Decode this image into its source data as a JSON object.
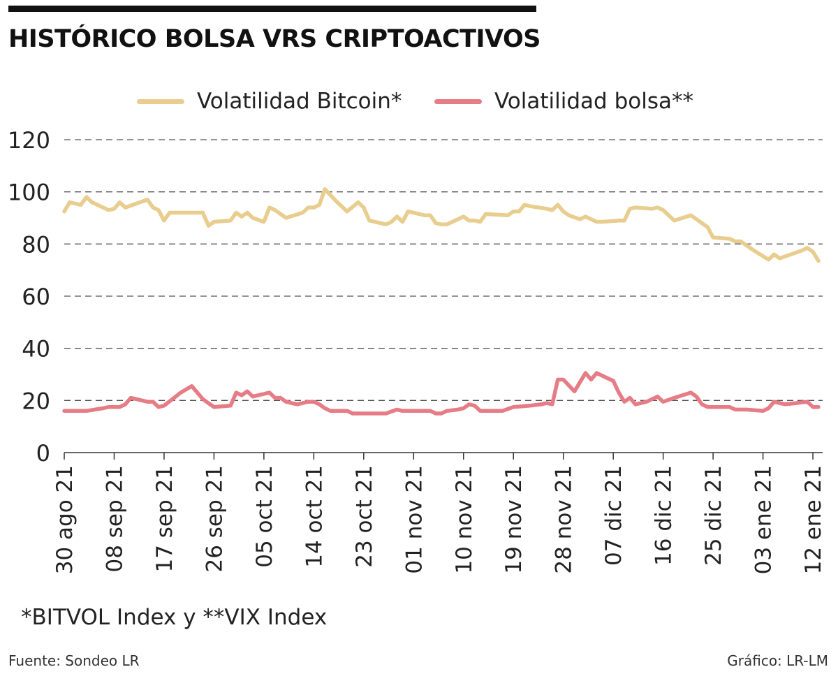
{
  "header": {
    "title": "HISTÓRICO BOLSA VRS CRIPTOACTIVOS"
  },
  "legend": [
    {
      "label": "Volatilidad Bitcoin*",
      "color": "#E8CD8E"
    },
    {
      "label": "Volatilidad bolsa**",
      "color": "#E67C85"
    }
  ],
  "footnote": "*BITVOL Index y **VIX Index",
  "source": "Fuente: Sondeo LR",
  "credit": "Gráfico: LR-LM",
  "chart_data": {
    "type": "line",
    "x_ticks": [
      "30 ago 21",
      "08 sep 21",
      "17 sep 21",
      "26 sep 21",
      "05 oct 21",
      "14 oct 21",
      "23 oct 21",
      "01 nov 21",
      "10 nov 21",
      "19 nov 21",
      "28 nov 21",
      "07 dic 21",
      "16 dic 21",
      "25 dic 21",
      "03 ene 21",
      "12 ene 21"
    ],
    "x_domain": [
      "2021-08-30",
      "2022-01-13"
    ],
    "ylim": [
      0,
      120
    ],
    "y_ticks": [
      0,
      20,
      40,
      60,
      80,
      100,
      120
    ],
    "grid": true,
    "legend_position": "top",
    "series": [
      {
        "name": "Volatilidad Bitcoin*",
        "color": "#E8CD8E",
        "points": [
          [
            "2021-08-30",
            92.5
          ],
          [
            "2021-08-31",
            96
          ],
          [
            "2021-09-01",
            95.5
          ],
          [
            "2021-09-02",
            95
          ],
          [
            "2021-09-03",
            98
          ],
          [
            "2021-09-04",
            96
          ],
          [
            "2021-09-07",
            93
          ],
          [
            "2021-09-08",
            93.5
          ],
          [
            "2021-09-09",
            96
          ],
          [
            "2021-09-10",
            94
          ],
          [
            "2021-09-14",
            97
          ],
          [
            "2021-09-15",
            94
          ],
          [
            "2021-09-16",
            93
          ],
          [
            "2021-09-17",
            89
          ],
          [
            "2021-09-18",
            92
          ],
          [
            "2021-09-24",
            92
          ],
          [
            "2021-09-25",
            87
          ],
          [
            "2021-09-26",
            88.5
          ],
          [
            "2021-09-29",
            89
          ],
          [
            "2021-09-30",
            92
          ],
          [
            "2021-10-01",
            90.5
          ],
          [
            "2021-10-02",
            92
          ],
          [
            "2021-10-03",
            90
          ],
          [
            "2021-10-05",
            88.5
          ],
          [
            "2021-10-06",
            94
          ],
          [
            "2021-10-07",
            93
          ],
          [
            "2021-10-09",
            90
          ],
          [
            "2021-10-12",
            92
          ],
          [
            "2021-10-13",
            94
          ],
          [
            "2021-10-14",
            94
          ],
          [
            "2021-10-15",
            95
          ],
          [
            "2021-10-16",
            101
          ],
          [
            "2021-10-18",
            96.5
          ],
          [
            "2021-10-20",
            92.5
          ],
          [
            "2021-10-22",
            96
          ],
          [
            "2021-10-23",
            94
          ],
          [
            "2021-10-24",
            89
          ],
          [
            "2021-10-27",
            87.5
          ],
          [
            "2021-10-28",
            88.5
          ],
          [
            "2021-10-29",
            90.5
          ],
          [
            "2021-10-30",
            88.5
          ],
          [
            "2021-10-31",
            92.5
          ],
          [
            "2021-11-03",
            91
          ],
          [
            "2021-11-04",
            91
          ],
          [
            "2021-11-05",
            88
          ],
          [
            "2021-11-06",
            87.5
          ],
          [
            "2021-11-07",
            87.5
          ],
          [
            "2021-11-10",
            90.5
          ],
          [
            "2021-11-11",
            89
          ],
          [
            "2021-11-12",
            89
          ],
          [
            "2021-11-13",
            88.5
          ],
          [
            "2021-11-14",
            91.5
          ],
          [
            "2021-11-18",
            91
          ],
          [
            "2021-11-19",
            92.5
          ],
          [
            "2021-11-20",
            92.5
          ],
          [
            "2021-11-21",
            95
          ],
          [
            "2021-11-22",
            94.5
          ],
          [
            "2021-11-25",
            93.5
          ],
          [
            "2021-11-26",
            93
          ],
          [
            "2021-11-27",
            95
          ],
          [
            "2021-11-28",
            92.5
          ],
          [
            "2021-11-29",
            91
          ],
          [
            "2021-12-01",
            89.5
          ],
          [
            "2021-12-02",
            90.5
          ],
          [
            "2021-12-04",
            88.5
          ],
          [
            "2021-12-05",
            88.5
          ],
          [
            "2021-12-08",
            89
          ],
          [
            "2021-12-09",
            89
          ],
          [
            "2021-12-10",
            93.5
          ],
          [
            "2021-12-11",
            94
          ],
          [
            "2021-12-14",
            93.5
          ],
          [
            "2021-12-15",
            94
          ],
          [
            "2021-12-16",
            93
          ],
          [
            "2021-12-18",
            89
          ],
          [
            "2021-12-21",
            91
          ],
          [
            "2021-12-23",
            88
          ],
          [
            "2021-12-24",
            86.5
          ],
          [
            "2021-12-25",
            82.5
          ],
          [
            "2021-12-28",
            82
          ],
          [
            "2021-12-29",
            81
          ],
          [
            "2021-12-30",
            81
          ],
          [
            "2022-01-01",
            78
          ],
          [
            "2022-01-04",
            74
          ],
          [
            "2022-01-05",
            76
          ],
          [
            "2022-01-06",
            74.5
          ],
          [
            "2022-01-08",
            76
          ],
          [
            "2022-01-10",
            77.5
          ],
          [
            "2022-01-11",
            78.5
          ],
          [
            "2022-01-12",
            77
          ],
          [
            "2022-01-13",
            73.5
          ]
        ]
      },
      {
        "name": "Volatilidad bolsa**",
        "color": "#E67C85",
        "points": [
          [
            "2021-08-30",
            16
          ],
          [
            "2021-09-03",
            16
          ],
          [
            "2021-09-06",
            17
          ],
          [
            "2021-09-07",
            17.5
          ],
          [
            "2021-09-09",
            17.5
          ],
          [
            "2021-09-10",
            18.5
          ],
          [
            "2021-09-11",
            21
          ],
          [
            "2021-09-13",
            20
          ],
          [
            "2021-09-14",
            19.5
          ],
          [
            "2021-09-15",
            19.5
          ],
          [
            "2021-09-16",
            17.5
          ],
          [
            "2021-09-17",
            18
          ],
          [
            "2021-09-20",
            23
          ],
          [
            "2021-09-22",
            25.5
          ],
          [
            "2021-09-24",
            20.5
          ],
          [
            "2021-09-26",
            17.5
          ],
          [
            "2021-09-29",
            18
          ],
          [
            "2021-09-30",
            23
          ],
          [
            "2021-10-01",
            22
          ],
          [
            "2021-10-02",
            23.5
          ],
          [
            "2021-10-03",
            21.5
          ],
          [
            "2021-10-05",
            22.5
          ],
          [
            "2021-10-06",
            23
          ],
          [
            "2021-10-07",
            21
          ],
          [
            "2021-10-08",
            21
          ],
          [
            "2021-10-09",
            19.5
          ],
          [
            "2021-10-11",
            18.5
          ],
          [
            "2021-10-13",
            19.5
          ],
          [
            "2021-10-14",
            19.5
          ],
          [
            "2021-10-15",
            18.5
          ],
          [
            "2021-10-16",
            17
          ],
          [
            "2021-10-17",
            16
          ],
          [
            "2021-10-20",
            16
          ],
          [
            "2021-10-21",
            15
          ],
          [
            "2021-10-24",
            15
          ],
          [
            "2021-10-25",
            15
          ],
          [
            "2021-10-27",
            15
          ],
          [
            "2021-10-29",
            16.5
          ],
          [
            "2021-10-30",
            16
          ],
          [
            "2021-11-04",
            16
          ],
          [
            "2021-11-05",
            15
          ],
          [
            "2021-11-06",
            15
          ],
          [
            "2021-11-07",
            16
          ],
          [
            "2021-11-09",
            16.5
          ],
          [
            "2021-11-10",
            17
          ],
          [
            "2021-11-11",
            18.5
          ],
          [
            "2021-11-12",
            18
          ],
          [
            "2021-11-13",
            16
          ],
          [
            "2021-11-17",
            16
          ],
          [
            "2021-11-19",
            17.5
          ],
          [
            "2021-11-22",
            18
          ],
          [
            "2021-11-24",
            18.5
          ],
          [
            "2021-11-25",
            19
          ],
          [
            "2021-11-26",
            18.5
          ],
          [
            "2021-11-27",
            28
          ],
          [
            "2021-11-28",
            28
          ],
          [
            "2021-11-30",
            23.5
          ],
          [
            "2021-12-01",
            27
          ],
          [
            "2021-12-02",
            30.5
          ],
          [
            "2021-12-03",
            28
          ],
          [
            "2021-12-04",
            30.5
          ],
          [
            "2021-12-06",
            28.5
          ],
          [
            "2021-12-07",
            27.5
          ],
          [
            "2021-12-08",
            23
          ],
          [
            "2021-12-09",
            19.5
          ],
          [
            "2021-12-10",
            21
          ],
          [
            "2021-12-11",
            18.5
          ],
          [
            "2021-12-13",
            19.5
          ],
          [
            "2021-12-15",
            21.5
          ],
          [
            "2021-12-16",
            19.5
          ],
          [
            "2021-12-18",
            21
          ],
          [
            "2021-12-21",
            23
          ],
          [
            "2021-12-22",
            21.5
          ],
          [
            "2021-12-23",
            18.5
          ],
          [
            "2021-12-24",
            17.5
          ],
          [
            "2021-12-28",
            17.5
          ],
          [
            "2021-12-29",
            16.5
          ],
          [
            "2021-12-31",
            16.5
          ],
          [
            "2022-01-03",
            16
          ],
          [
            "2022-01-04",
            17
          ],
          [
            "2022-01-05",
            19.5
          ],
          [
            "2022-01-06",
            19
          ],
          [
            "2022-01-07",
            18.5
          ],
          [
            "2022-01-09",
            19
          ],
          [
            "2022-01-11",
            19.5
          ],
          [
            "2022-01-12",
            17.5
          ],
          [
            "2022-01-13",
            17.5
          ]
        ]
      }
    ]
  }
}
